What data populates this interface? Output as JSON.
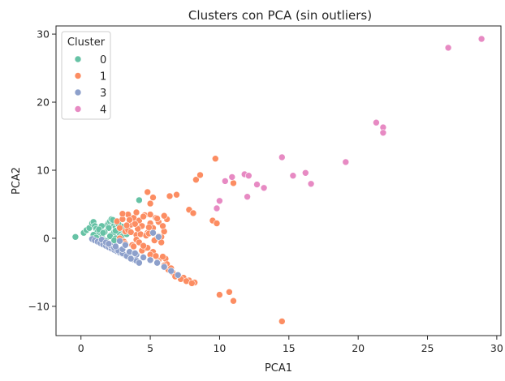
{
  "chart_data": {
    "type": "scatter",
    "title": "Clusters con PCA (sin outliers)",
    "xlabel": "PCA1",
    "ylabel": "PCA2",
    "xlim": [
      -1.8,
      30.3
    ],
    "ylim": [
      -14.3,
      31.2
    ],
    "xticks": [
      0,
      5,
      10,
      15,
      20,
      25,
      30
    ],
    "yticks": [
      -10,
      0,
      10,
      20,
      30
    ],
    "grid": false,
    "legend": {
      "title": "Cluster",
      "placement": "top-left"
    },
    "series": [
      {
        "name": "0",
        "color": "#66c2a5",
        "x": [
          -0.4,
          0.2,
          0.4,
          0.6,
          0.8,
          0.9,
          1.0,
          1.1,
          1.2,
          1.3,
          1.4,
          1.5,
          1.6,
          1.7,
          1.8,
          1.9,
          2.0,
          2.1,
          2.2,
          2.3,
          2.4,
          2.5,
          2.6,
          2.8,
          3.0,
          1.0,
          1.2,
          1.4,
          1.6,
          1.8,
          2.0,
          2.2,
          2.4,
          2.6,
          2.8,
          3.0,
          3.2,
          1.5,
          2.0,
          2.5,
          0.9,
          1.3,
          1.7,
          2.1,
          2.5,
          2.9,
          3.3,
          4.2,
          2.3,
          2.7,
          3.1,
          1.1,
          1.6,
          2.4
        ],
        "y": [
          0.2,
          0.8,
          1.2,
          1.5,
          2.2,
          2.4,
          1.8,
          1.4,
          1.0,
          0.6,
          0.3,
          0.1,
          -0.1,
          -0.3,
          -0.4,
          2.0,
          2.3,
          2.5,
          2.8,
          2.4,
          1.9,
          1.6,
          2.2,
          1.4,
          1.7,
          0.0,
          -0.2,
          -0.5,
          -0.6,
          -0.7,
          -0.8,
          0.5,
          0.9,
          1.2,
          0.7,
          0.4,
          1.0,
          1.8,
          1.5,
          1.1,
          0.5,
          1.3,
          0.9,
          0.3,
          0.0,
          0.2,
          0.6,
          5.6,
          2.7,
          2.1,
          1.2,
          0.1,
          0.8,
          -0.3
        ]
      },
      {
        "name": "1",
        "color": "#fc8d62",
        "x": [
          2.6,
          2.8,
          3.0,
          3.2,
          3.4,
          3.6,
          3.8,
          4.0,
          4.2,
          4.4,
          4.6,
          4.8,
          5.0,
          5.2,
          5.4,
          5.6,
          5.8,
          6.0,
          6.2,
          2.8,
          3.1,
          3.4,
          3.7,
          4.0,
          4.3,
          4.6,
          4.9,
          5.2,
          5.5,
          5.8,
          6.1,
          3.0,
          3.5,
          4.0,
          4.5,
          5.0,
          5.5,
          6.0,
          3.2,
          3.8,
          4.4,
          5.0,
          5.6,
          6.2,
          4.1,
          4.7,
          5.3,
          5.9,
          3.6,
          4.2,
          4.8,
          5.4,
          6.0,
          6.3,
          6.6,
          7.0,
          7.4,
          7.8,
          8.2,
          6.8,
          7.2,
          7.6,
          8.0,
          6.5,
          5.0,
          5.2,
          4.8,
          4.9,
          6.4,
          6.9,
          7.8,
          8.1,
          8.3,
          8.6,
          9.5,
          9.8,
          9.7,
          10.9,
          11.0,
          10.0,
          10.7,
          11.0,
          14.5,
          5.5,
          5.9,
          4.5,
          5.6,
          3.3,
          3.9
        ],
        "y": [
          2.5,
          1.5,
          2.8,
          1.0,
          3.5,
          2.0,
          3.0,
          0.5,
          2.6,
          1.8,
          3.4,
          0.8,
          2.2,
          1.5,
          3.0,
          2.4,
          0.2,
          1.0,
          2.8,
          0.0,
          -0.5,
          1.2,
          -1.0,
          -0.2,
          0.6,
          -1.5,
          1.6,
          -2.0,
          0.0,
          -0.6,
          -3.0,
          3.6,
          2.7,
          3.8,
          3.2,
          3.5,
          2.9,
          3.3,
          -0.8,
          -1.2,
          -1.8,
          -2.4,
          -3.2,
          -3.8,
          1.4,
          0.4,
          -0.3,
          1.8,
          0.9,
          -0.6,
          -1.4,
          -2.6,
          -4.0,
          -4.6,
          -5.0,
          -5.4,
          -5.8,
          -6.2,
          -6.5,
          -5.6,
          -6.0,
          -6.3,
          -6.6,
          -4.4,
          5.1,
          6.0,
          6.8,
          0.7,
          6.2,
          6.4,
          4.2,
          3.7,
          8.6,
          9.3,
          2.6,
          2.2,
          11.7,
          9.0,
          8.1,
          -8.3,
          -7.9,
          -9.2,
          -12.2,
          -3.5,
          -2.7,
          -1.1,
          0.3,
          1.9,
          2.1
        ]
      },
      {
        "name": "3",
        "color": "#8da0cb",
        "x": [
          0.8,
          1.0,
          1.2,
          1.4,
          1.6,
          1.8,
          2.0,
          2.2,
          2.4,
          2.6,
          2.8,
          3.0,
          3.2,
          3.4,
          3.6,
          3.8,
          4.0,
          4.2,
          1.5,
          1.8,
          2.1,
          2.4,
          2.7,
          3.0,
          3.3,
          3.6,
          2.0,
          2.5,
          3.0,
          3.5,
          4.0,
          4.5,
          5.0,
          5.5,
          6.0,
          6.5,
          7.0,
          5.2,
          5.6,
          2.8,
          3.2,
          3.9
        ],
        "y": [
          -0.1,
          -0.3,
          -0.5,
          -0.7,
          -0.9,
          -1.1,
          -1.3,
          -1.5,
          -1.7,
          -1.9,
          -2.1,
          -2.3,
          -2.5,
          -2.7,
          -2.9,
          -3.1,
          -3.3,
          -3.6,
          -0.2,
          -0.6,
          -1.0,
          -1.4,
          -1.8,
          -2.2,
          -2.6,
          -3.0,
          -0.8,
          -1.2,
          -1.6,
          -2.0,
          -2.4,
          -2.8,
          -3.2,
          -3.6,
          -4.2,
          -4.8,
          -5.4,
          0.8,
          0.2,
          -0.4,
          -1.0,
          -2.2
        ]
      },
      {
        "name": "4",
        "color": "#e78ac3",
        "x": [
          9.8,
          10.0,
          10.4,
          10.9,
          11.8,
          12.0,
          12.1,
          12.7,
          13.2,
          14.5,
          15.3,
          16.2,
          16.6,
          19.1,
          21.3,
          21.8,
          21.8,
          26.5,
          28.9
        ],
        "y": [
          4.4,
          5.5,
          8.4,
          9.0,
          9.4,
          6.1,
          9.2,
          7.9,
          7.4,
          11.9,
          9.2,
          9.6,
          8.0,
          11.2,
          17.0,
          16.3,
          15.5,
          28.0,
          29.3
        ]
      }
    ]
  }
}
